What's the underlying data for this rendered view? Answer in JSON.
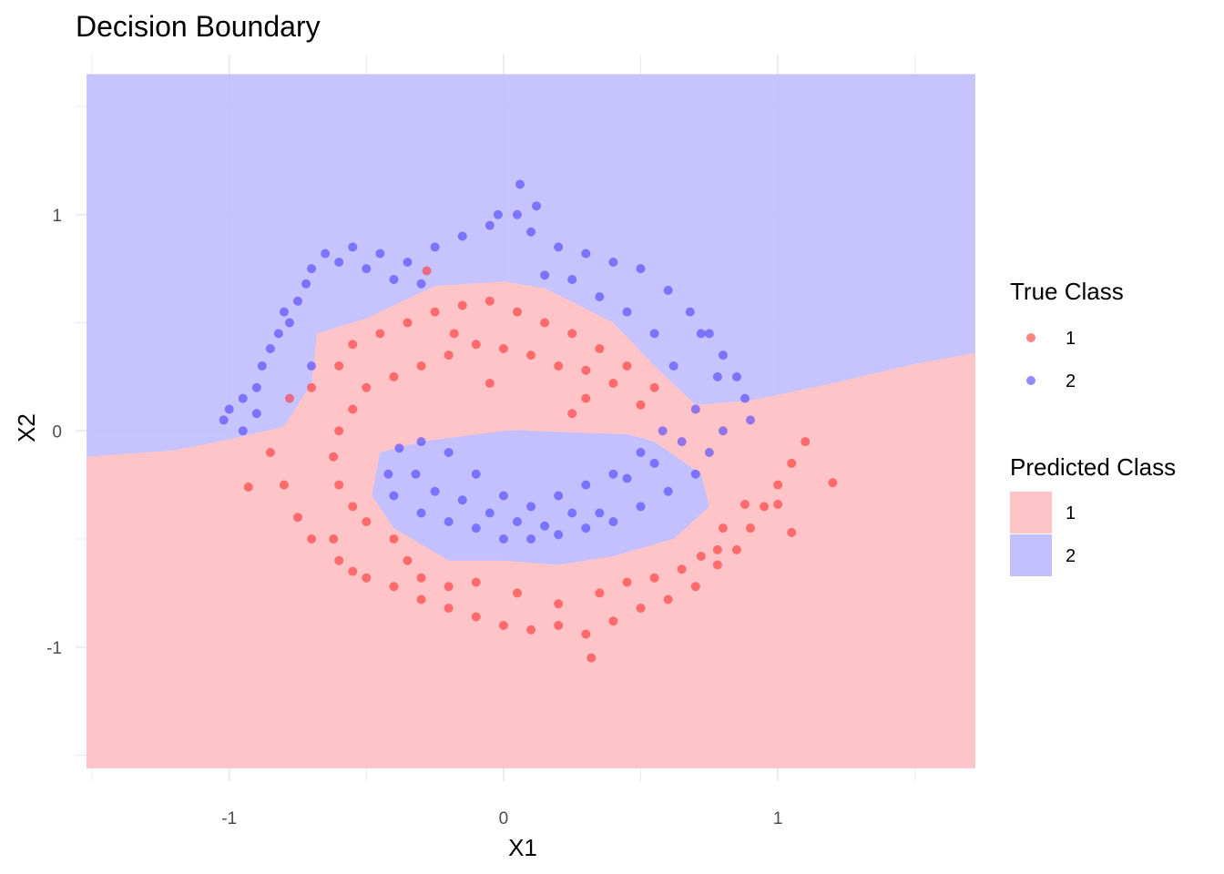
{
  "chart_data": {
    "type": "scatter",
    "title": "Decision Boundary",
    "xlabel": "X1",
    "ylabel": "X2",
    "xlim": [
      -1.56,
      1.7
    ],
    "ylim": [
      -1.62,
      1.74
    ],
    "x_ticks": [
      -1,
      0,
      1
    ],
    "x_tick_labels": [
      "-1",
      "0",
      "1"
    ],
    "y_ticks": [
      -1,
      0,
      1
    ],
    "y_tick_labels": [
      "-1",
      "0",
      "1"
    ],
    "grid": true,
    "legend_position": "right",
    "legend_true_title": "True Class",
    "legend_pred_title": "Predicted Class",
    "region_extent": {
      "x": [
        -1.52,
        1.72
      ],
      "y": [
        -1.56,
        1.65
      ]
    },
    "classes": [
      {
        "label": "1",
        "point_color": "#ff3030",
        "fill_color": "#ffc4c8"
      },
      {
        "label": "2",
        "point_color": "#4a40ff",
        "fill_color": "#c4c0ff"
      }
    ],
    "boundary_outer_lower": [
      [
        -1.52,
        -0.12
      ],
      [
        -1.2,
        -0.09
      ],
      [
        -1.0,
        -0.04
      ],
      [
        -0.8,
        0.02
      ],
      [
        -0.7,
        0.22
      ],
      [
        -0.68,
        0.45
      ],
      [
        -0.5,
        0.52
      ],
      [
        -0.25,
        0.67
      ],
      [
        0.0,
        0.69
      ],
      [
        0.15,
        0.66
      ],
      [
        0.4,
        0.5
      ],
      [
        0.55,
        0.3
      ],
      [
        0.7,
        0.12
      ],
      [
        0.9,
        0.14
      ],
      [
        1.2,
        0.22
      ],
      [
        1.5,
        0.31
      ],
      [
        1.72,
        0.36
      ]
    ],
    "inner_region": [
      [
        -0.45,
        -0.1
      ],
      [
        -0.3,
        -0.05
      ],
      [
        0.0,
        0.0
      ],
      [
        0.35,
        0.02
      ],
      [
        0.55,
        -0.05
      ],
      [
        0.72,
        -0.2
      ],
      [
        0.75,
        -0.35
      ],
      [
        0.62,
        -0.5
      ],
      [
        0.4,
        -0.58
      ],
      [
        0.2,
        -0.62
      ],
      [
        0.0,
        -0.6
      ],
      [
        -0.2,
        -0.6
      ],
      [
        -0.4,
        -0.45
      ],
      [
        -0.48,
        -0.3
      ]
    ],
    "inner_bite": [
      [
        -0.4,
        0.05
      ],
      [
        0.1,
        0.0
      ],
      [
        0.55,
        -0.02
      ],
      [
        0.55,
        0.08
      ],
      [
        0.2,
        0.09
      ],
      [
        -0.4,
        0.1
      ]
    ],
    "points": {
      "1": [
        [
          -0.93,
          -0.26
        ],
        [
          -0.62,
          -0.5
        ],
        [
          -0.7,
          0.2
        ],
        [
          -0.78,
          0.15
        ],
        [
          -0.85,
          -0.1
        ],
        [
          -0.8,
          -0.25
        ],
        [
          -0.75,
          -0.4
        ],
        [
          -0.7,
          -0.5
        ],
        [
          -0.6,
          -0.6
        ],
        [
          -0.55,
          -0.65
        ],
        [
          -0.5,
          -0.68
        ],
        [
          -0.4,
          -0.72
        ],
        [
          -0.3,
          -0.78
        ],
        [
          -0.2,
          -0.82
        ],
        [
          -0.1,
          -0.86
        ],
        [
          0.0,
          -0.9
        ],
        [
          0.1,
          -0.92
        ],
        [
          0.2,
          -0.9
        ],
        [
          0.3,
          -0.94
        ],
        [
          0.32,
          -1.05
        ],
        [
          0.4,
          -0.88
        ],
        [
          0.5,
          -0.82
        ],
        [
          0.6,
          -0.78
        ],
        [
          0.7,
          -0.72
        ],
        [
          0.78,
          -0.62
        ],
        [
          0.85,
          -0.55
        ],
        [
          0.9,
          -0.45
        ],
        [
          0.95,
          -0.35
        ],
        [
          1.0,
          -0.25
        ],
        [
          1.05,
          -0.15
        ],
        [
          1.1,
          -0.05
        ],
        [
          1.2,
          -0.24
        ],
        [
          1.05,
          -0.47
        ],
        [
          1.0,
          -0.34
        ],
        [
          0.88,
          -0.34
        ],
        [
          0.8,
          -0.45
        ],
        [
          0.78,
          -0.55
        ],
        [
          -0.6,
          0.3
        ],
        [
          -0.55,
          0.4
        ],
        [
          -0.45,
          0.45
        ],
        [
          -0.35,
          0.5
        ],
        [
          -0.25,
          0.55
        ],
        [
          -0.15,
          0.58
        ],
        [
          -0.05,
          0.6
        ],
        [
          0.05,
          0.55
        ],
        [
          0.15,
          0.5
        ],
        [
          0.25,
          0.45
        ],
        [
          0.35,
          0.38
        ],
        [
          0.45,
          0.3
        ],
        [
          0.55,
          0.2
        ],
        [
          0.3,
          0.15
        ],
        [
          0.25,
          0.08
        ],
        [
          0.1,
          0.35
        ],
        [
          0.0,
          0.38
        ],
        [
          -0.1,
          0.4
        ],
        [
          -0.2,
          0.35
        ],
        [
          -0.3,
          0.3
        ],
        [
          -0.4,
          0.25
        ],
        [
          -0.5,
          0.2
        ],
        [
          -0.55,
          0.1
        ],
        [
          -0.6,
          0.0
        ],
        [
          -0.62,
          -0.12
        ],
        [
          -0.6,
          -0.25
        ],
        [
          -0.55,
          -0.35
        ],
        [
          -0.5,
          -0.42
        ],
        [
          -0.4,
          -0.5
        ],
        [
          -0.35,
          -0.6
        ],
        [
          -0.3,
          -0.68
        ],
        [
          -0.2,
          -0.72
        ],
        [
          -0.1,
          -0.7
        ],
        [
          0.05,
          -0.75
        ],
        [
          0.2,
          -0.8
        ],
        [
          0.35,
          -0.75
        ],
        [
          0.45,
          -0.7
        ],
        [
          0.55,
          -0.68
        ],
        [
          0.65,
          -0.64
        ],
        [
          0.72,
          -0.58
        ],
        [
          -0.28,
          0.74
        ],
        [
          -0.18,
          0.45
        ],
        [
          0.5,
          0.12
        ],
        [
          0.4,
          0.22
        ],
        [
          0.3,
          0.28
        ],
        [
          0.2,
          0.3
        ],
        [
          -0.05,
          0.22
        ]
      ],
      "2": [
        [
          -1.02,
          0.05
        ],
        [
          -1.0,
          0.1
        ],
        [
          -0.95,
          0.15
        ],
        [
          -0.9,
          0.2
        ],
        [
          -0.88,
          0.3
        ],
        [
          -0.85,
          0.38
        ],
        [
          -0.82,
          0.45
        ],
        [
          -0.8,
          0.55
        ],
        [
          -0.75,
          0.6
        ],
        [
          -0.72,
          0.68
        ],
        [
          -0.7,
          0.75
        ],
        [
          -0.65,
          0.82
        ],
        [
          -0.55,
          0.85
        ],
        [
          -0.45,
          0.82
        ],
        [
          -0.35,
          0.78
        ],
        [
          -0.25,
          0.85
        ],
        [
          -0.15,
          0.9
        ],
        [
          -0.05,
          0.95
        ],
        [
          0.05,
          1.0
        ],
        [
          0.1,
          0.92
        ],
        [
          0.2,
          0.85
        ],
        [
          0.3,
          0.82
        ],
        [
          0.4,
          0.78
        ],
        [
          0.5,
          0.75
        ],
        [
          0.6,
          0.65
        ],
        [
          0.68,
          0.55
        ],
        [
          0.75,
          0.45
        ],
        [
          0.8,
          0.35
        ],
        [
          0.85,
          0.25
        ],
        [
          0.88,
          0.15
        ],
        [
          0.8,
          0.0
        ],
        [
          0.75,
          -0.1
        ],
        [
          0.7,
          -0.2
        ],
        [
          0.6,
          -0.28
        ],
        [
          0.5,
          -0.35
        ],
        [
          0.4,
          -0.42
        ],
        [
          0.3,
          -0.45
        ],
        [
          0.2,
          -0.48
        ],
        [
          0.1,
          -0.5
        ],
        [
          0.0,
          -0.5
        ],
        [
          -0.1,
          -0.45
        ],
        [
          -0.2,
          -0.42
        ],
        [
          -0.3,
          -0.38
        ],
        [
          -0.4,
          -0.3
        ],
        [
          -0.42,
          -0.2
        ],
        [
          -0.38,
          -0.08
        ],
        [
          -0.3,
          -0.05
        ],
        [
          -0.2,
          -0.1
        ],
        [
          -0.1,
          -0.2
        ],
        [
          0.0,
          -0.3
        ],
        [
          0.1,
          -0.35
        ],
        [
          0.2,
          -0.3
        ],
        [
          0.3,
          -0.25
        ],
        [
          0.4,
          -0.2
        ],
        [
          0.5,
          -0.1
        ],
        [
          0.58,
          0.0
        ],
        [
          0.06,
          1.14
        ],
        [
          0.12,
          1.04
        ],
        [
          -0.02,
          1.0
        ],
        [
          0.7,
          0.1
        ],
        [
          0.62,
          0.3
        ],
        [
          0.55,
          0.45
        ],
        [
          0.45,
          0.55
        ],
        [
          0.35,
          0.62
        ],
        [
          0.25,
          0.7
        ],
        [
          0.15,
          0.72
        ],
        [
          -0.6,
          0.78
        ],
        [
          -0.5,
          0.75
        ],
        [
          -0.4,
          0.7
        ],
        [
          -0.3,
          0.68
        ],
        [
          -0.78,
          0.5
        ],
        [
          -0.7,
          0.3
        ],
        [
          0.72,
          0.45
        ],
        [
          0.78,
          0.25
        ],
        [
          0.65,
          -0.05
        ],
        [
          0.55,
          -0.15
        ],
        [
          0.45,
          -0.22
        ],
        [
          0.35,
          -0.38
        ],
        [
          -0.32,
          -0.2
        ],
        [
          -0.25,
          -0.28
        ],
        [
          -0.15,
          -0.32
        ],
        [
          -0.05,
          -0.38
        ],
        [
          0.05,
          -0.42
        ],
        [
          0.15,
          -0.44
        ],
        [
          0.25,
          -0.38
        ],
        [
          -0.95,
          0.0
        ],
        [
          -0.9,
          0.08
        ],
        [
          0.9,
          0.05
        ]
      ]
    }
  }
}
